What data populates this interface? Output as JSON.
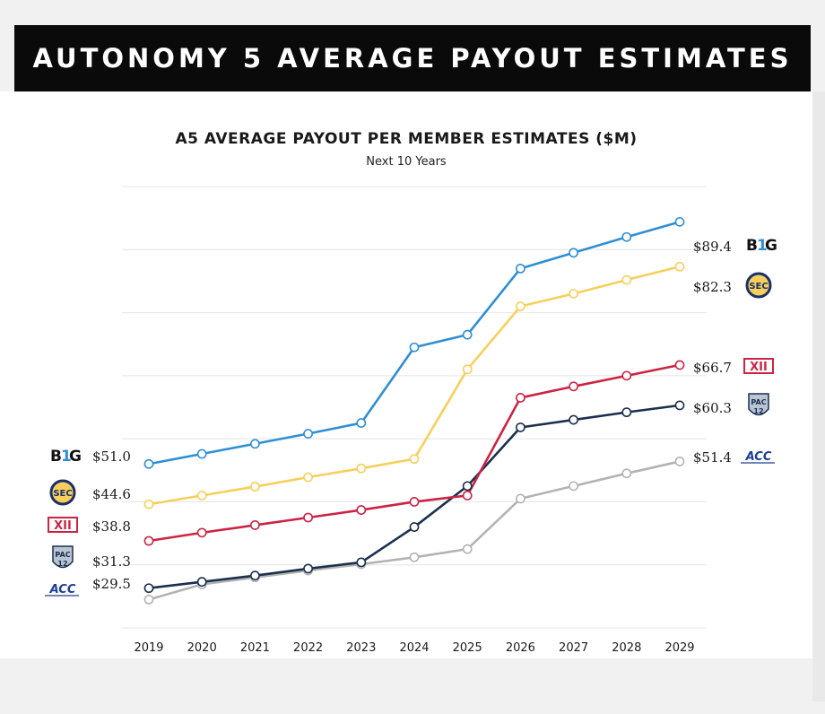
{
  "banner": {
    "title": "AUTONOMY 5 AVERAGE PAYOUT ESTIMATES"
  },
  "chart_data": {
    "type": "line",
    "title": "A5 AVERAGE PAYOUT PER MEMBER ESTIMATES ($M)",
    "subtitle": "Next 10 Years",
    "xlabel": "",
    "ylabel": "",
    "x": [
      "2019",
      "2020",
      "2021",
      "2022",
      "2023",
      "2024",
      "2025",
      "2026",
      "2027",
      "2028",
      "2029"
    ],
    "ylim": [
      25,
      95
    ],
    "grid": true,
    "series": [
      {
        "name": "Big Ten",
        "logo": "B1G",
        "color": "#2f8fd3",
        "values": [
          51.0,
          52.6,
          54.2,
          55.8,
          57.5,
          69.5,
          71.5,
          82.0,
          84.5,
          87.0,
          89.4
        ],
        "start_label": "$51.0",
        "end_label": "$89.4"
      },
      {
        "name": "SEC",
        "logo": "SEC",
        "color": "#f7cf5a",
        "values": [
          44.6,
          46.0,
          47.4,
          48.9,
          50.3,
          51.8,
          66.0,
          76.0,
          78.0,
          80.2,
          82.3
        ],
        "start_label": "$44.6",
        "end_label": "$82.3"
      },
      {
        "name": "Big 12",
        "logo": "XII",
        "color": "#cc2444",
        "values": [
          38.8,
          40.1,
          41.3,
          42.5,
          43.7,
          45.0,
          46.0,
          61.5,
          63.3,
          65.0,
          66.7
        ],
        "start_label": "$38.8",
        "end_label": "$66.7"
      },
      {
        "name": "Pac-12",
        "logo": "PAC 12",
        "color": "#1b2f4f",
        "values": [
          31.3,
          32.3,
          33.3,
          34.4,
          35.4,
          41.0,
          47.5,
          56.8,
          58.0,
          59.2,
          60.3
        ],
        "start_label": "$31.3",
        "end_label": "$60.3"
      },
      {
        "name": "ACC",
        "logo": "ACC",
        "color": "#b3b3b3",
        "values": [
          29.5,
          31.9,
          33.0,
          34.1,
          35.1,
          36.2,
          37.5,
          45.5,
          47.5,
          49.5,
          51.4
        ],
        "start_label": "$29.5",
        "end_label": "$51.4"
      }
    ]
  }
}
